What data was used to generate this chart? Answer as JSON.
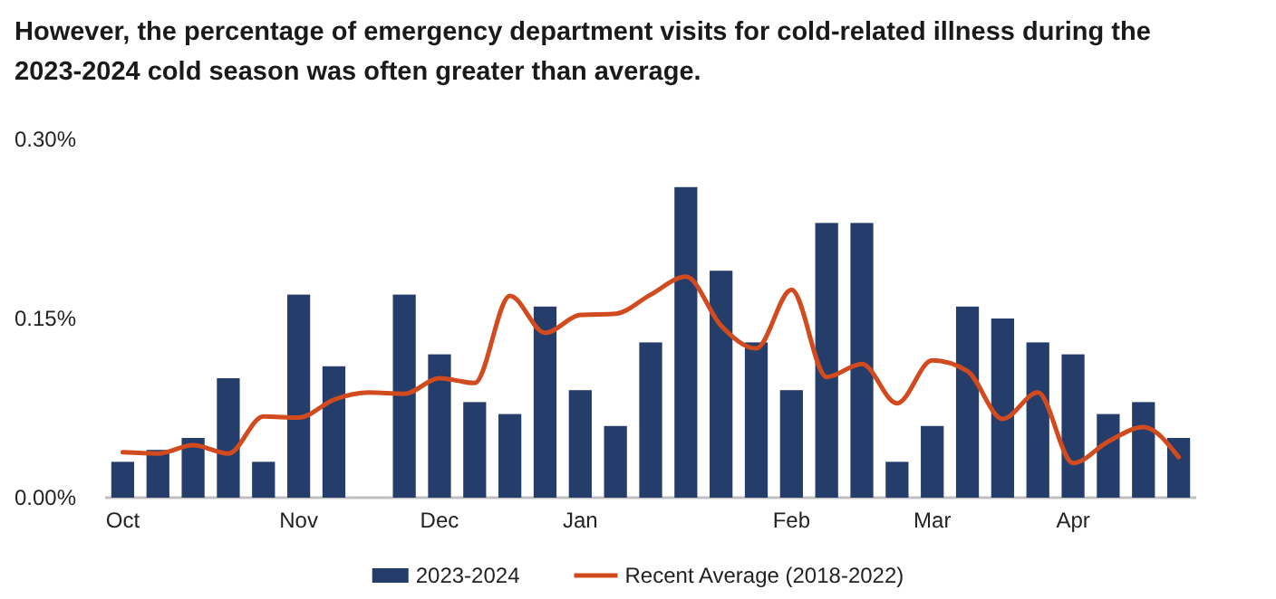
{
  "chart_data": {
    "type": "bar",
    "title": "However, the percentage of emergency department visits for cold-related illness during the 2023-2024 cold season was often greater than average.",
    "categories": [
      "Oct",
      null,
      null,
      null,
      null,
      "Nov",
      null,
      null,
      null,
      "Dec",
      null,
      null,
      null,
      "Jan",
      null,
      null,
      null,
      null,
      null,
      "Feb",
      null,
      null,
      null,
      "Mar",
      null,
      null,
      null,
      "Apr",
      null,
      null,
      null
    ],
    "series": [
      {
        "name": "2023-2024",
        "color": "#253d6b",
        "values": [
          0.03,
          0.04,
          0.05,
          0.1,
          0.03,
          0.17,
          0.11,
          null,
          0.17,
          0.12,
          0.08,
          0.07,
          0.16,
          0.09,
          0.06,
          0.13,
          0.26,
          0.19,
          0.13,
          0.09,
          0.23,
          0.23,
          0.03,
          0.06,
          0.16,
          0.15,
          0.13,
          0.12,
          0.07,
          0.08,
          0.05
        ]
      },
      {
        "name": "Recent Average (2018-2022)",
        "type": "line",
        "color": "#d24b1f",
        "values": [
          0.038,
          0.037,
          0.044,
          0.037,
          0.068,
          0.067,
          0.082,
          0.088,
          0.087,
          0.1,
          0.096,
          0.169,
          0.138,
          0.153,
          0.154,
          0.17,
          0.185,
          0.144,
          0.125,
          0.174,
          0.101,
          0.112,
          0.079,
          0.115,
          0.106,
          0.066,
          0.088,
          0.029,
          0.047,
          0.059,
          0.034
        ]
      }
    ],
    "ylim": [
      0,
      0.3
    ],
    "yticks": [
      {
        "value": 0,
        "label": "0.00%"
      },
      {
        "value": 0.15,
        "label": "0.15%"
      },
      {
        "value": 0.3,
        "label": "0.30%"
      }
    ],
    "grid": false,
    "legend": "bottom"
  }
}
